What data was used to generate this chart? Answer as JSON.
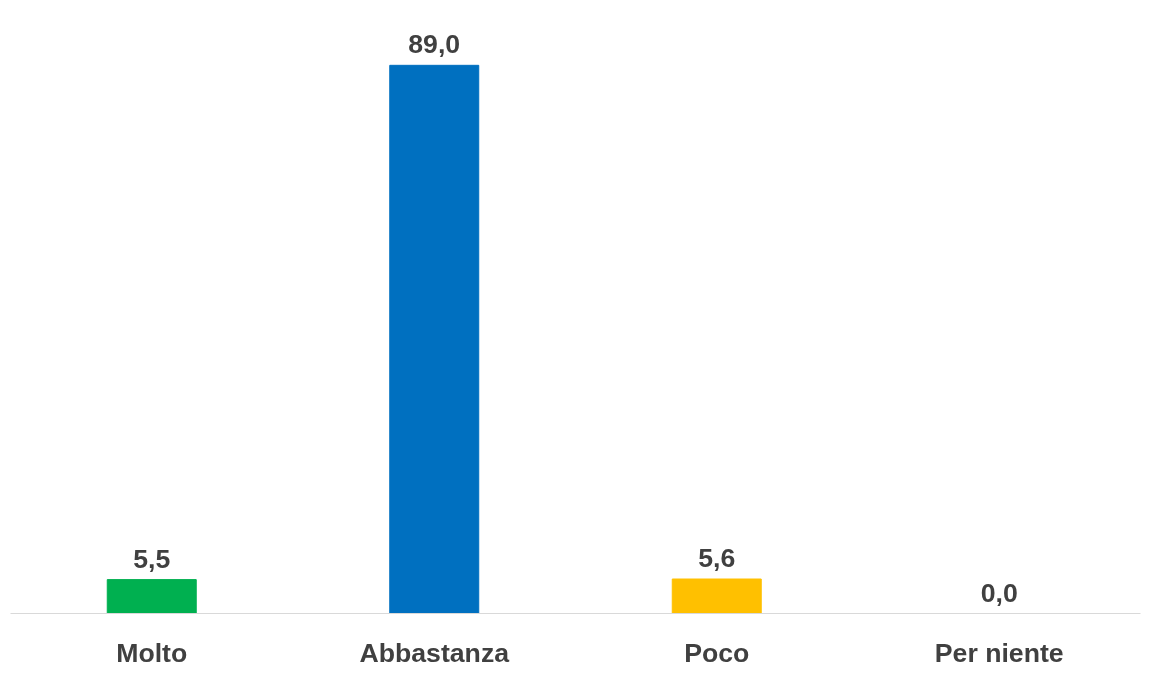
{
  "chart_data": {
    "type": "bar",
    "categories": [
      "Molto",
      "Abbastanza",
      "Poco",
      "Per niente"
    ],
    "values": [
      5.5,
      89.0,
      5.6,
      0.0
    ],
    "colors": [
      "#00b050",
      "#0070c0",
      "#ffc000",
      "#0070c0"
    ],
    "value_labels": [
      "5,5",
      "89,0",
      "5,6",
      "0,0"
    ],
    "grid": false
  }
}
